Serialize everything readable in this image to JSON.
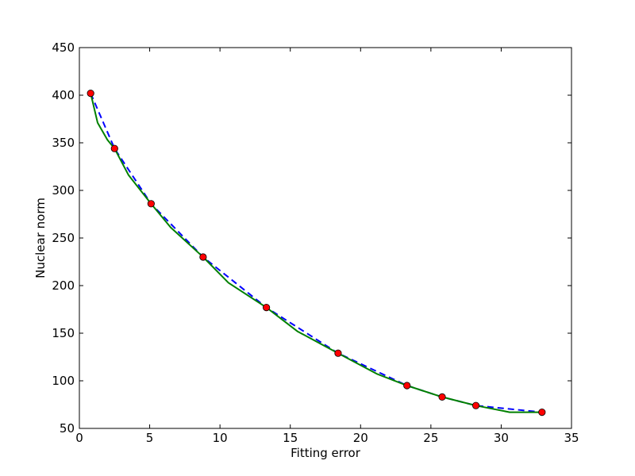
{
  "chart_data": {
    "type": "line",
    "title": "",
    "xlabel": "Fitting error",
    "ylabel": "Nuclear norm",
    "xlim": [
      0,
      35
    ],
    "ylim": [
      50,
      450
    ],
    "xticks": [
      0,
      5,
      10,
      15,
      20,
      25,
      30,
      35
    ],
    "yticks": [
      50,
      100,
      150,
      200,
      250,
      300,
      350,
      400,
      450
    ],
    "grid": false,
    "legend": "none",
    "series": [
      {
        "style": "dashed",
        "color": "#0000ff",
        "x": [
          0.8,
          2.5,
          5.1,
          8.8,
          13.3,
          18.4,
          23.3,
          25.8,
          28.2,
          32.9
        ],
        "y": [
          402,
          344,
          286,
          230,
          177,
          129,
          95,
          83,
          74,
          67
        ]
      },
      {
        "style": "solid",
        "color": "#008000",
        "x": [
          0.8,
          1.3,
          2.0,
          2.5,
          3.5,
          5.1,
          6.5,
          8.8,
          10.6,
          13.3,
          15.5,
          18.4,
          21.2,
          23.3,
          25.8,
          28.2,
          30.6,
          32.9
        ],
        "y": [
          402,
          371,
          353,
          344,
          316,
          286,
          261,
          230,
          203,
          177,
          152,
          129,
          107,
          95,
          83,
          74,
          67,
          67
        ]
      },
      {
        "style": "markers",
        "color": "#ff0000",
        "x": [
          0.8,
          2.5,
          5.1,
          8.8,
          13.3,
          18.4,
          23.3,
          25.8,
          28.2,
          32.9
        ],
        "y": [
          402,
          344,
          286,
          230,
          177,
          129,
          95,
          83,
          74,
          67
        ]
      }
    ]
  }
}
